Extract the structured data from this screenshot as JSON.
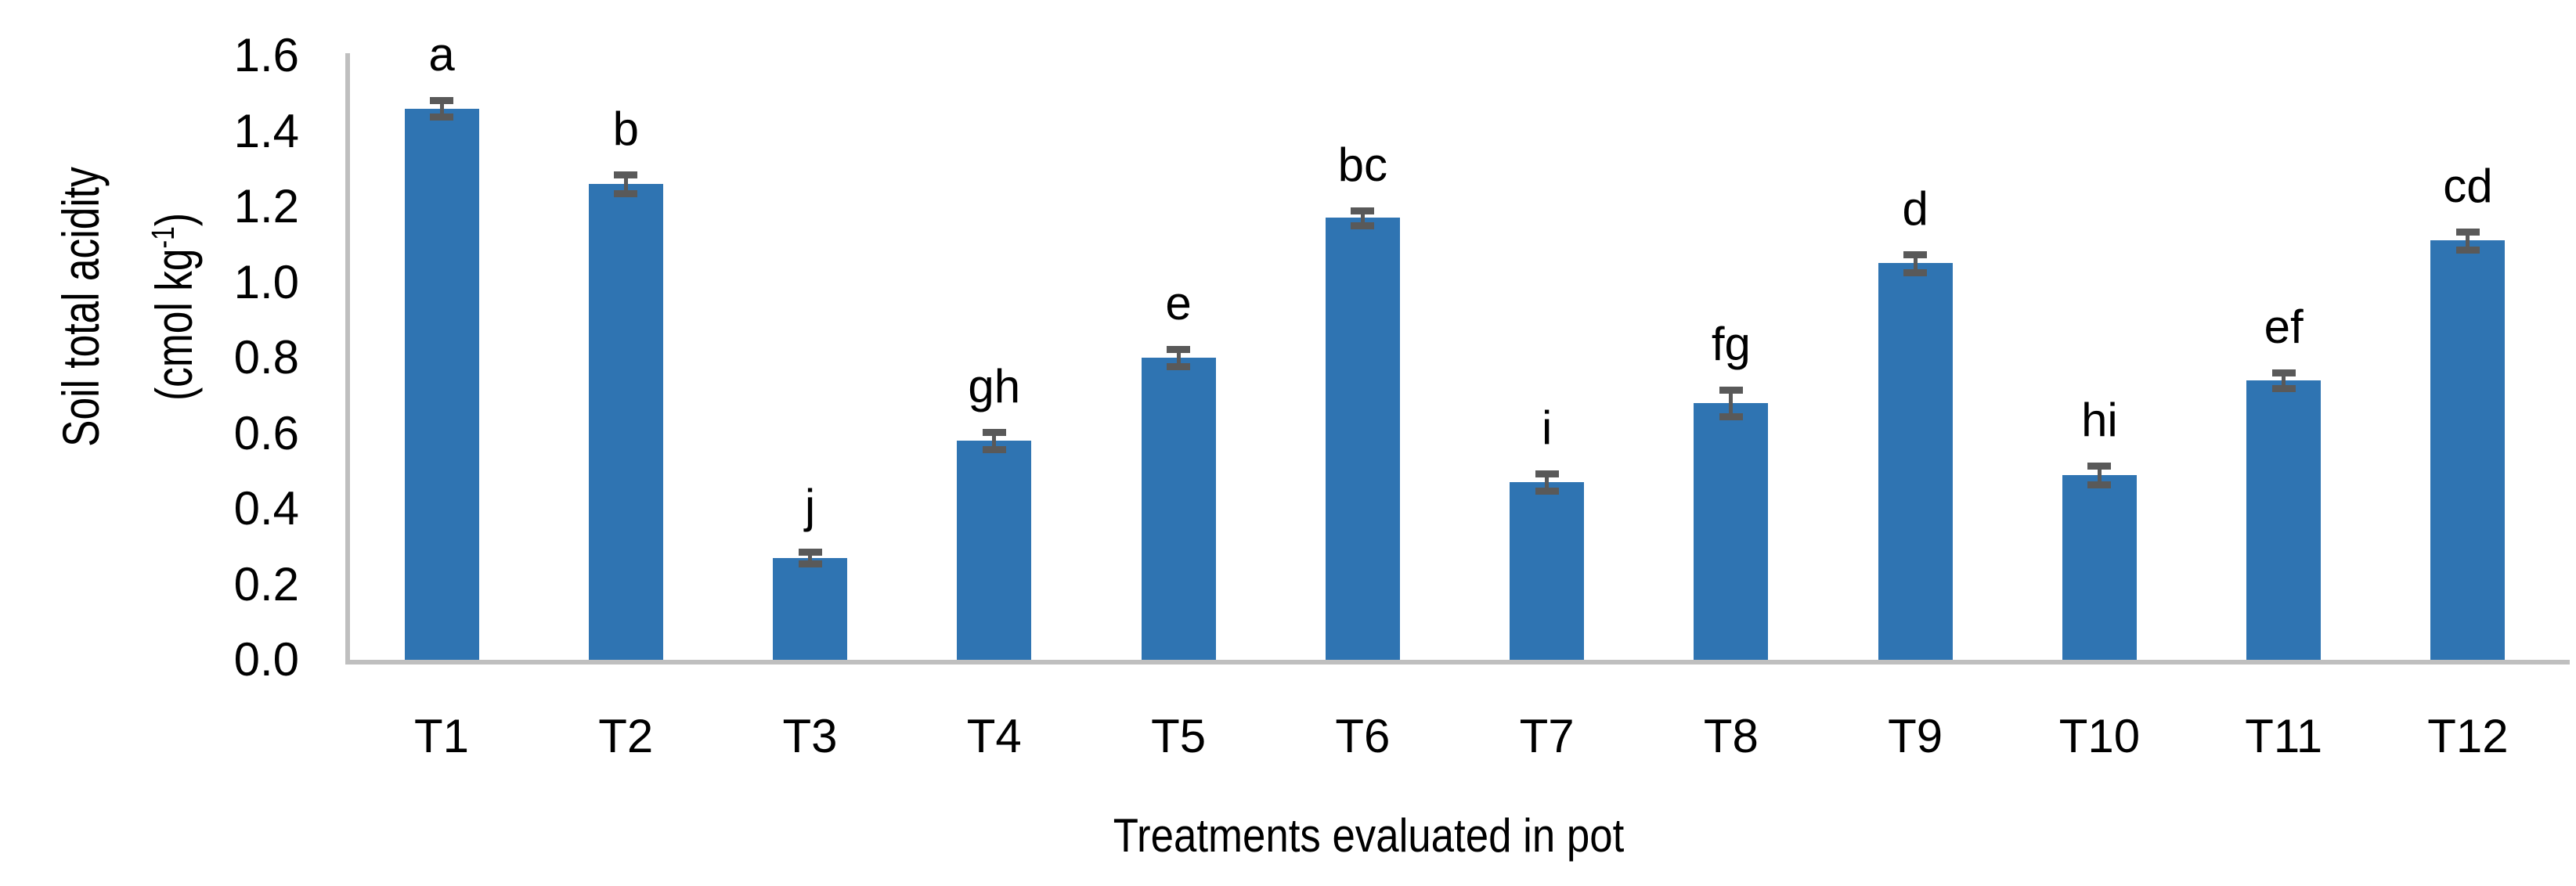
{
  "chart_data": {
    "type": "bar",
    "title": "",
    "xlabel": "Treatments evaluated in pot",
    "ylabel_line1": "Soil total acidity",
    "ylabel_line2_prefix": "(cmol kg",
    "ylabel_superscript": "-1",
    "ylabel_line2_suffix": ")",
    "categories": [
      "T1",
      "T2",
      "T3",
      "T4",
      "T5",
      "T6",
      "T7",
      "T8",
      "T9",
      "T10",
      "T11",
      "T12"
    ],
    "values": [
      1.46,
      1.26,
      0.27,
      0.58,
      0.8,
      1.17,
      0.47,
      0.68,
      1.05,
      0.49,
      0.74,
      1.11
    ],
    "errors": [
      0.021,
      0.024,
      0.016,
      0.023,
      0.023,
      0.02,
      0.023,
      0.036,
      0.024,
      0.025,
      0.02,
      0.023
    ],
    "sig_letters": [
      "a",
      "b",
      "j",
      "gh",
      "e",
      "bc",
      "i",
      "fg",
      "d",
      "hi",
      "ef",
      "cd"
    ],
    "y_ticks": [
      "0.0",
      "0.2",
      "0.4",
      "0.6",
      "0.8",
      "1.0",
      "1.2",
      "1.4",
      "1.6"
    ],
    "ylim": [
      0,
      1.6
    ],
    "grid": "off",
    "legend": "none",
    "error_bars": "yes",
    "bar_color": "#2F74B2",
    "error_bar_color": "#595959",
    "axis_line_color": "#BFBFBF",
    "text_color": "#000000"
  }
}
